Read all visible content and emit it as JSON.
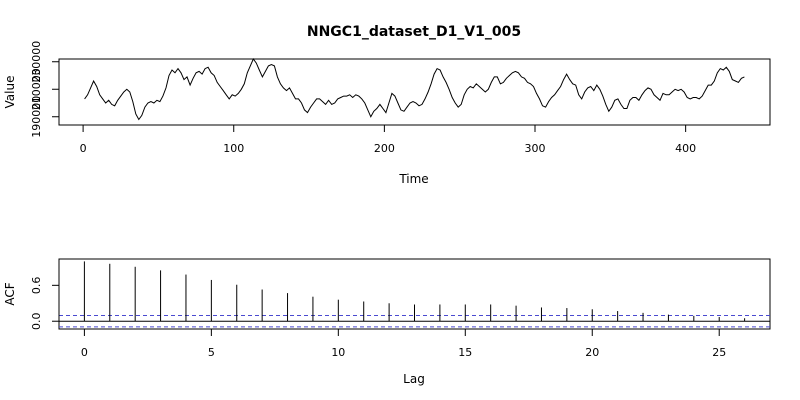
{
  "chart_data": [
    {
      "type": "line",
      "title": "NNGC1_dataset_D1_V1_005",
      "xlabel": "Time",
      "ylabel": "Value",
      "xlim": [
        -16,
        456
      ],
      "ylim": [
        184000,
        232000
      ],
      "x_ticks": [
        0,
        100,
        200,
        300,
        400
      ],
      "x_tick_labels": [
        "0",
        "100",
        "200",
        "300",
        "400"
      ],
      "y_ticks": [
        190000,
        210000,
        230000
      ],
      "y_tick_labels": [
        "190000",
        "210000",
        "230000"
      ],
      "grid": false,
      "series": [
        {
          "color": "#000000",
          "points": [
            [
              1,
              203000
            ],
            [
              3,
              206000
            ],
            [
              5,
              211000
            ],
            [
              7,
              216000
            ],
            [
              9,
              212000
            ],
            [
              11,
              206000
            ],
            [
              13,
              203000
            ],
            [
              15,
              200000
            ],
            [
              17,
              202000
            ],
            [
              19,
              199000
            ],
            [
              21,
              198000
            ],
            [
              23,
              202000
            ],
            [
              25,
              205000
            ],
            [
              27,
              208000
            ],
            [
              29,
              210000
            ],
            [
              31,
              208000
            ],
            [
              33,
              201000
            ],
            [
              35,
              192000
            ],
            [
              37,
              188000
            ],
            [
              39,
              191000
            ],
            [
              41,
              197000
            ],
            [
              43,
              200000
            ],
            [
              45,
              201000
            ],
            [
              47,
              200000
            ],
            [
              49,
              202000
            ],
            [
              51,
              201000
            ],
            [
              53,
              205000
            ],
            [
              55,
              211000
            ],
            [
              57,
              220000
            ],
            [
              59,
              224000
            ],
            [
              61,
              222000
            ],
            [
              63,
              225000
            ],
            [
              65,
              222000
            ],
            [
              67,
              217000
            ],
            [
              69,
              219000
            ],
            [
              71,
              213000
            ],
            [
              73,
              218000
            ],
            [
              75,
              222000
            ],
            [
              77,
              223000
            ],
            [
              79,
              221000
            ],
            [
              81,
              225000
            ],
            [
              83,
              226000
            ],
            [
              85,
              222000
            ],
            [
              87,
              220000
            ],
            [
              89,
              215000
            ],
            [
              91,
              212000
            ],
            [
              93,
              209000
            ],
            [
              95,
              206000
            ],
            [
              97,
              203000
            ],
            [
              99,
              206000
            ],
            [
              101,
              205000
            ],
            [
              103,
              207000
            ],
            [
              105,
              210000
            ],
            [
              107,
              214000
            ],
            [
              109,
              222000
            ],
            [
              111,
              227000
            ],
            [
              113,
              232000
            ],
            [
              115,
              229000
            ],
            [
              117,
              224000
            ],
            [
              119,
              219000
            ],
            [
              121,
              223000
            ],
            [
              123,
              227000
            ],
            [
              125,
              228000
            ],
            [
              127,
              227000
            ],
            [
              129,
              219000
            ],
            [
              131,
              214000
            ],
            [
              133,
              211000
            ],
            [
              135,
              209000
            ],
            [
              137,
              211000
            ],
            [
              139,
              207000
            ],
            [
              141,
              203000
            ],
            [
              143,
              203000
            ],
            [
              145,
              200000
            ],
            [
              147,
              195000
            ],
            [
              149,
              193000
            ],
            [
              151,
              197000
            ],
            [
              153,
              200000
            ],
            [
              155,
              203000
            ],
            [
              157,
              203000
            ],
            [
              159,
              201000
            ],
            [
              161,
              199000
            ],
            [
              163,
              202000
            ],
            [
              165,
              199000
            ],
            [
              167,
              200000
            ],
            [
              169,
              203000
            ],
            [
              171,
              204000
            ],
            [
              173,
              205000
            ],
            [
              175,
              205000
            ],
            [
              177,
              206000
            ],
            [
              179,
              204000
            ],
            [
              181,
              206000
            ],
            [
              183,
              205000
            ],
            [
              185,
              203000
            ],
            [
              187,
              200000
            ],
            [
              189,
              195000
            ],
            [
              191,
              190000
            ],
            [
              193,
              194000
            ],
            [
              195,
              196000
            ],
            [
              197,
              199000
            ],
            [
              199,
              196000
            ],
            [
              201,
              193000
            ],
            [
              203,
              200000
            ],
            [
              205,
              207000
            ],
            [
              207,
              205000
            ],
            [
              209,
              200000
            ],
            [
              211,
              195000
            ],
            [
              213,
              194000
            ],
            [
              215,
              197000
            ],
            [
              217,
              200000
            ],
            [
              219,
              201000
            ],
            [
              221,
              200000
            ],
            [
              223,
              198000
            ],
            [
              225,
              199000
            ],
            [
              227,
              203000
            ],
            [
              229,
              208000
            ],
            [
              231,
              214000
            ],
            [
              233,
              221000
            ],
            [
              235,
              225000
            ],
            [
              237,
              224000
            ],
            [
              239,
              219000
            ],
            [
              241,
              215000
            ],
            [
              243,
              210000
            ],
            [
              245,
              204000
            ],
            [
              247,
              200000
            ],
            [
              249,
              197000
            ],
            [
              251,
              199000
            ],
            [
              253,
              206000
            ],
            [
              255,
              210000
            ],
            [
              257,
              212000
            ],
            [
              259,
              211000
            ],
            [
              261,
              214000
            ],
            [
              263,
              212000
            ],
            [
              265,
              210000
            ],
            [
              267,
              208000
            ],
            [
              269,
              210000
            ],
            [
              271,
              215000
            ],
            [
              273,
              219000
            ],
            [
              275,
              219000
            ],
            [
              277,
              214000
            ],
            [
              279,
              215000
            ],
            [
              281,
              218000
            ],
            [
              283,
              220000
            ],
            [
              285,
              222000
            ],
            [
              287,
              223000
            ],
            [
              289,
              222000
            ],
            [
              291,
              219000
            ],
            [
              293,
              218000
            ],
            [
              295,
              215000
            ],
            [
              297,
              214000
            ],
            [
              299,
              212000
            ],
            [
              301,
              207000
            ],
            [
              303,
              203000
            ],
            [
              305,
              198000
            ],
            [
              307,
              197000
            ],
            [
              309,
              201000
            ],
            [
              311,
              204000
            ],
            [
              313,
              206000
            ],
            [
              315,
              209000
            ],
            [
              317,
              212000
            ],
            [
              319,
              217000
            ],
            [
              321,
              221000
            ],
            [
              323,
              217000
            ],
            [
              325,
              214000
            ],
            [
              327,
              213000
            ],
            [
              329,
              206000
            ],
            [
              331,
              203000
            ],
            [
              333,
              208000
            ],
            [
              335,
              211000
            ],
            [
              337,
              212000
            ],
            [
              339,
              209000
            ],
            [
              341,
              213000
            ],
            [
              343,
              210000
            ],
            [
              345,
              205000
            ],
            [
              347,
              199000
            ],
            [
              349,
              194000
            ],
            [
              351,
              197000
            ],
            [
              353,
              202000
            ],
            [
              355,
              203000
            ],
            [
              357,
              199000
            ],
            [
              359,
              196000
            ],
            [
              361,
              196000
            ],
            [
              363,
              202000
            ],
            [
              365,
              204000
            ],
            [
              367,
              204000
            ],
            [
              369,
              202000
            ],
            [
              371,
              206000
            ],
            [
              373,
              209000
            ],
            [
              375,
              211000
            ],
            [
              377,
              210000
            ],
            [
              379,
              206000
            ],
            [
              381,
              204000
            ],
            [
              383,
              202000
            ],
            [
              385,
              207000
            ],
            [
              387,
              206000
            ],
            [
              389,
              206000
            ],
            [
              391,
              208000
            ],
            [
              393,
              210000
            ],
            [
              395,
              209000
            ],
            [
              397,
              210000
            ],
            [
              399,
              208000
            ],
            [
              401,
              204000
            ],
            [
              403,
              203000
            ],
            [
              405,
              204000
            ],
            [
              407,
              204000
            ],
            [
              409,
              203000
            ],
            [
              411,
              205000
            ],
            [
              413,
              209000
            ],
            [
              415,
              213000
            ],
            [
              417,
              213000
            ],
            [
              419,
              216000
            ],
            [
              421,
              222000
            ],
            [
              423,
              225000
            ],
            [
              425,
              224000
            ],
            [
              427,
              226000
            ],
            [
              429,
              223000
            ],
            [
              431,
              217000
            ],
            [
              433,
              216000
            ],
            [
              435,
              215000
            ],
            [
              437,
              218000
            ],
            [
              439,
              219000
            ]
          ]
        }
      ]
    },
    {
      "type": "bar",
      "xlabel": "Lag",
      "ylabel": "ACF",
      "xlim": [
        -1,
        27
      ],
      "ylim": [
        -0.13,
        1.04
      ],
      "x_ticks": [
        0,
        5,
        10,
        15,
        20,
        25
      ],
      "x_tick_labels": [
        "0",
        "5",
        "10",
        "15",
        "20",
        "25"
      ],
      "y_ticks": [
        0.0,
        0.6
      ],
      "y_tick_labels": [
        "0.0",
        "0.6"
      ],
      "confidence_bound": 0.095,
      "grid": false,
      "lags": [
        0,
        1,
        2,
        3,
        4,
        5,
        6,
        7,
        8,
        9,
        10,
        11,
        12,
        13,
        14,
        15,
        16,
        17,
        18,
        19,
        20,
        21,
        22,
        23,
        24,
        25,
        26
      ],
      "values": [
        1.0,
        0.96,
        0.91,
        0.85,
        0.78,
        0.69,
        0.61,
        0.53,
        0.47,
        0.41,
        0.36,
        0.33,
        0.3,
        0.28,
        0.28,
        0.28,
        0.28,
        0.26,
        0.23,
        0.22,
        0.2,
        0.17,
        0.14,
        0.11,
        0.09,
        0.07,
        0.05
      ],
      "colors": {
        "bars": "#000000",
        "zero_line": "#000000",
        "confidence": "#4a4ad0"
      }
    }
  ]
}
